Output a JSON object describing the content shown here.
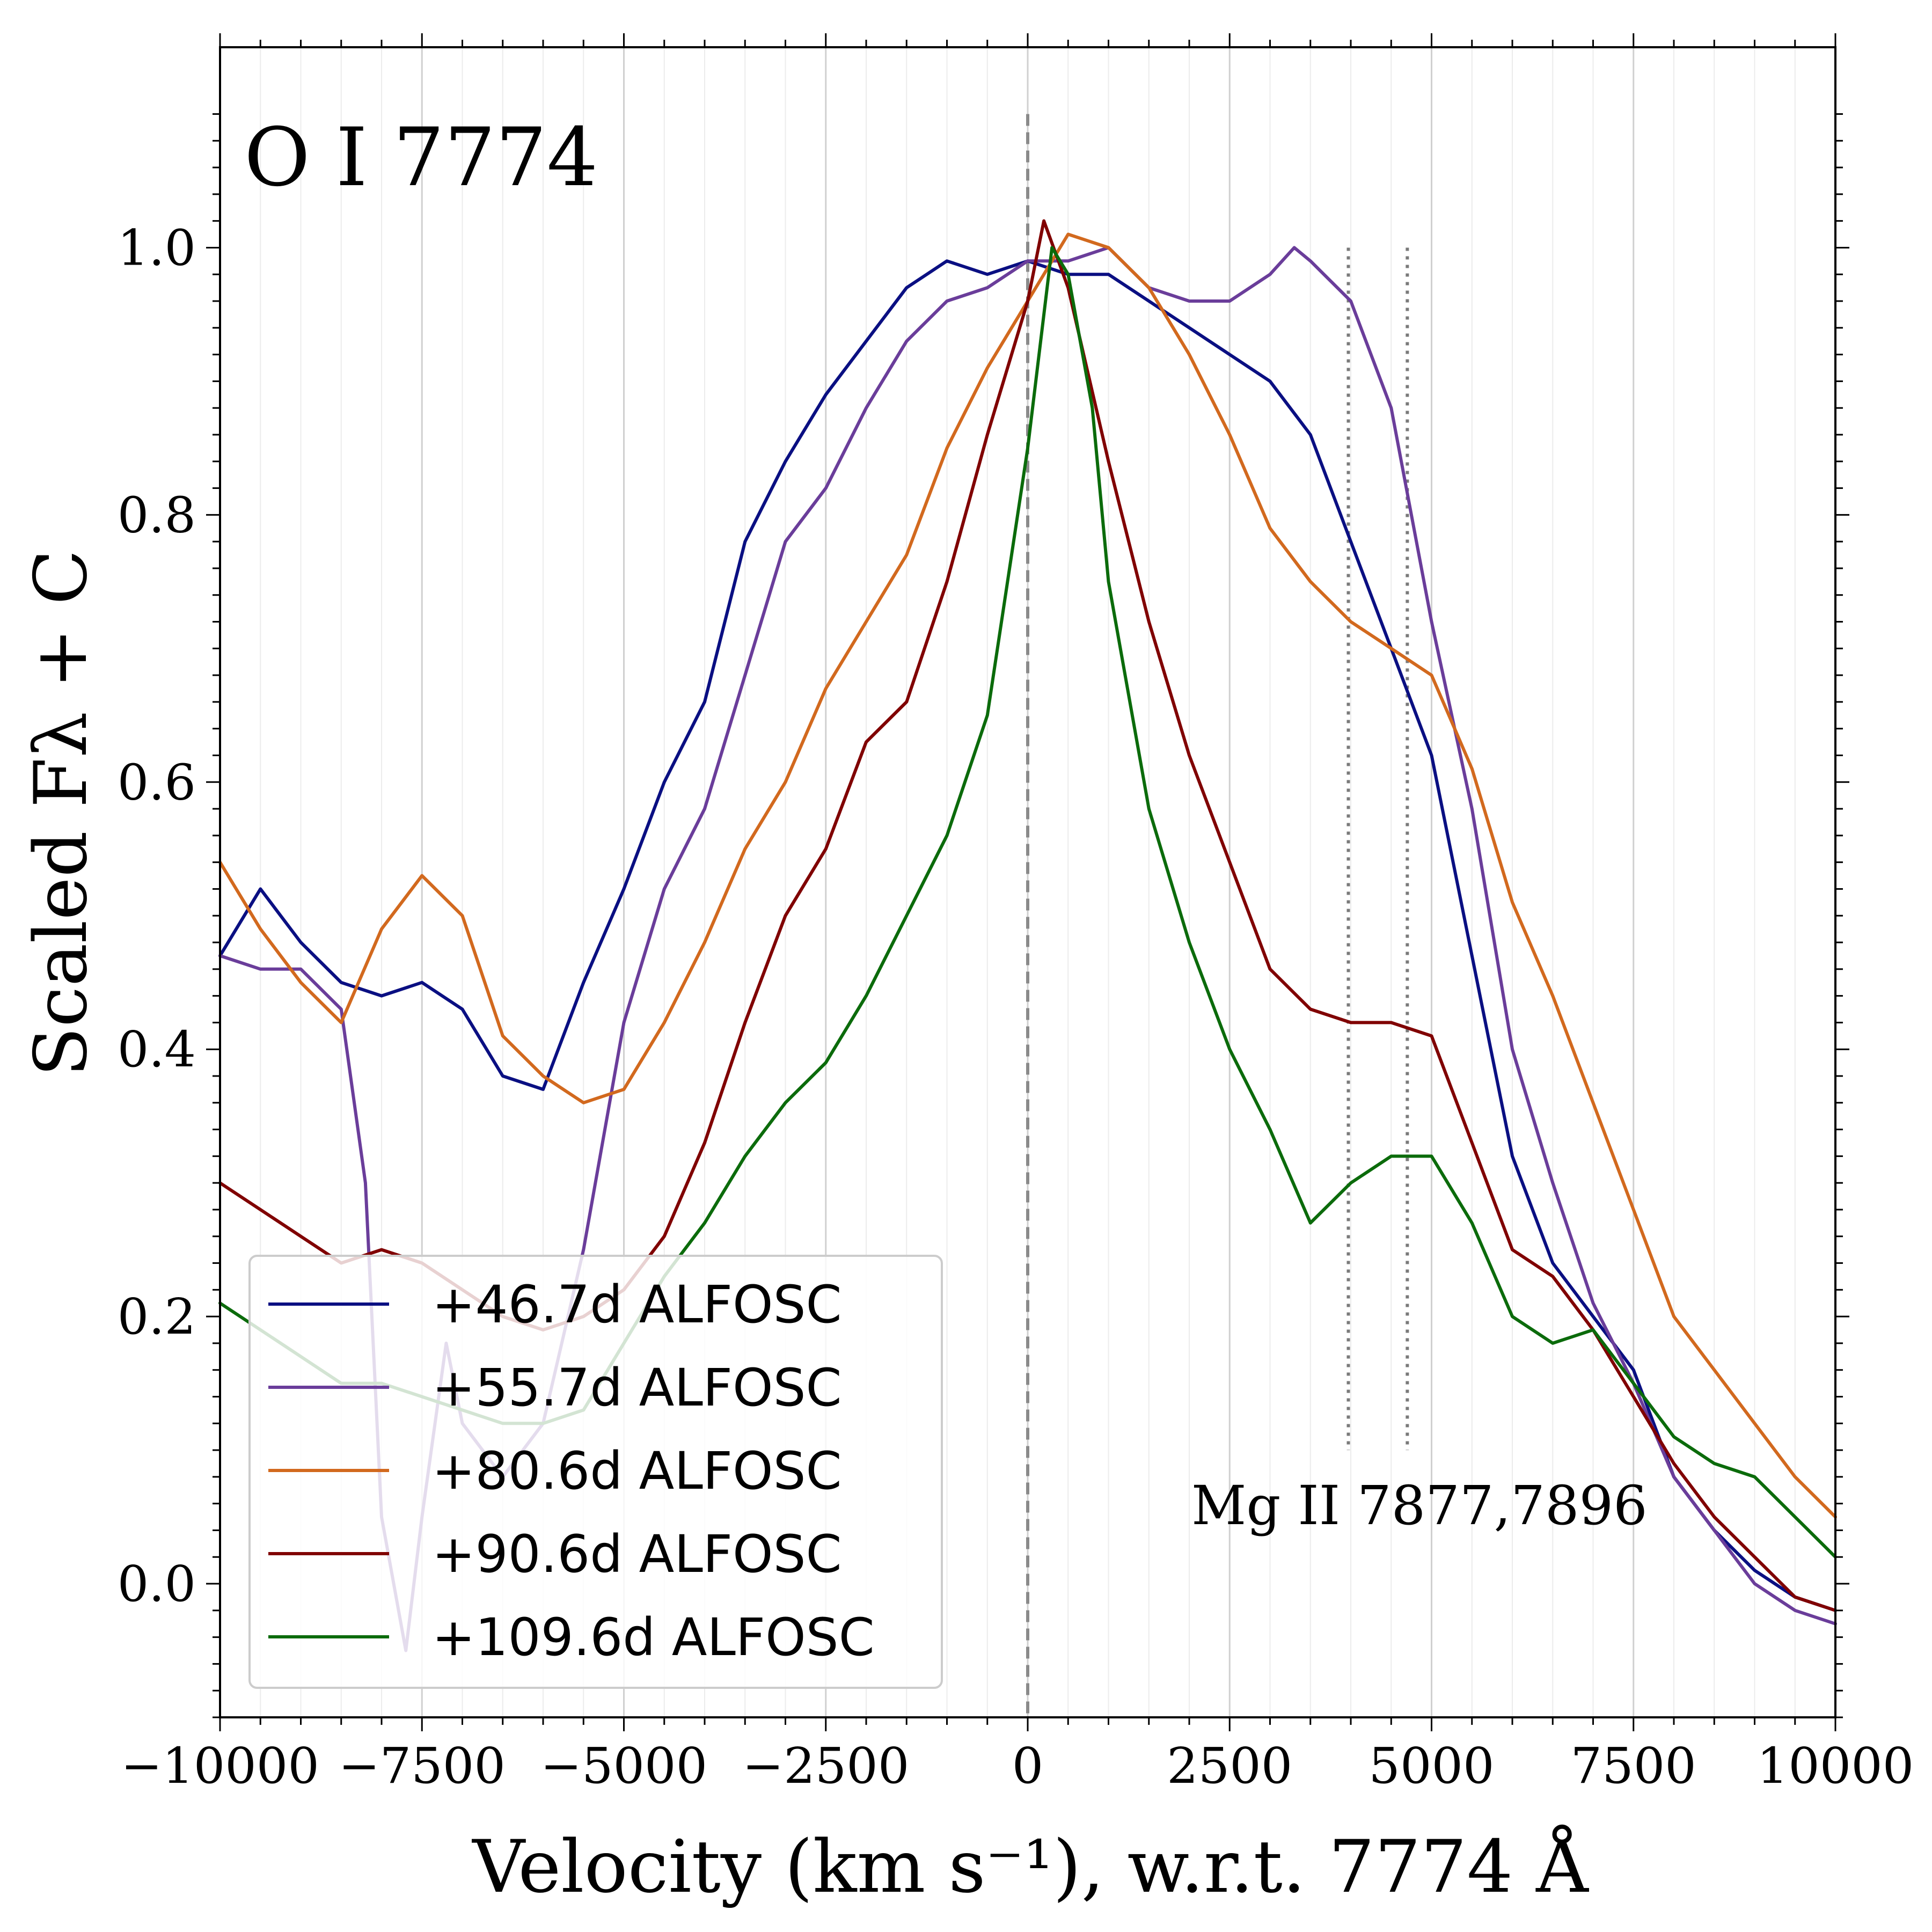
{
  "chart_data": {
    "type": "line",
    "title": "O I 7774",
    "xlabel": "Velocity (km s⁻¹), w.r.t. 7774 Å",
    "ylabel": "Scaled Fλ + C",
    "xlim": [
      -10000,
      10000
    ],
    "ylim": [
      -0.1,
      1.15
    ],
    "xticks": [
      -10000,
      -7500,
      -5000,
      -2500,
      0,
      2500,
      5000,
      7500,
      10000
    ],
    "xtick_labels": [
      "−10000",
      "−7500",
      "−5000",
      "−2500",
      "0",
      "2500",
      "5000",
      "7500",
      "10000"
    ],
    "yticks": [
      0.0,
      0.2,
      0.4,
      0.6,
      0.8,
      1.0
    ],
    "ytick_labels": [
      "0.0",
      "0.2",
      "0.4",
      "0.6",
      "0.8",
      "1.0"
    ],
    "grid": "vertical major and minor",
    "annotation": {
      "text": "Mg II 7877,7896",
      "x": 4500,
      "y": 0.06,
      "markers": [
        {
          "x": 3970,
          "y_range": [
            0.1,
            1.0
          ],
          "style": "dotted"
        },
        {
          "x": 4700,
          "y_range": [
            0.1,
            1.0
          ],
          "style": "dotted"
        }
      ]
    },
    "reference_line": {
      "x": 0,
      "y_range": [
        -0.1,
        1.1
      ],
      "style": "dashed"
    },
    "legend": {
      "position": "lower-left"
    },
    "series": [
      {
        "name": "+46.7d ALFOSC",
        "color": "#0a0f82",
        "x": [
          -10000,
          -9500,
          -9000,
          -8500,
          -8000,
          -7500,
          -7000,
          -6500,
          -6000,
          -5500,
          -5000,
          -4500,
          -4000,
          -3500,
          -3000,
          -2500,
          -2000,
          -1500,
          -1000,
          -500,
          0,
          500,
          1000,
          1500,
          2000,
          2500,
          3000,
          3500,
          4000,
          4500,
          5000,
          5500,
          6000,
          6500,
          7000,
          7500,
          8000,
          8500,
          9000,
          9500,
          10000
        ],
        "y": [
          0.47,
          0.52,
          0.48,
          0.45,
          0.44,
          0.45,
          0.43,
          0.38,
          0.37,
          0.45,
          0.52,
          0.6,
          0.66,
          0.78,
          0.84,
          0.89,
          0.93,
          0.97,
          0.99,
          0.98,
          0.99,
          0.98,
          0.98,
          0.96,
          0.94,
          0.92,
          0.9,
          0.86,
          0.78,
          0.7,
          0.62,
          0.47,
          0.32,
          0.24,
          0.2,
          0.16,
          0.08,
          0.04,
          0.01,
          -0.01,
          -0.02
        ]
      },
      {
        "name": "+55.7d ALFOSC",
        "color": "#6a3d9a",
        "x": [
          -10000,
          -9500,
          -9000,
          -8500,
          -8200,
          -8000,
          -7700,
          -7500,
          -7200,
          -7000,
          -6500,
          -6000,
          -5500,
          -5000,
          -4500,
          -4000,
          -3500,
          -3000,
          -2500,
          -2000,
          -1500,
          -1000,
          -500,
          0,
          500,
          1000,
          1500,
          2000,
          2500,
          3000,
          3300,
          3500,
          4000,
          4500,
          5000,
          5500,
          6000,
          6500,
          7000,
          7500,
          8000,
          8500,
          9000,
          9500,
          10000
        ],
        "y": [
          0.47,
          0.46,
          0.46,
          0.43,
          0.3,
          0.05,
          -0.05,
          0.05,
          0.18,
          0.12,
          0.08,
          0.12,
          0.25,
          0.42,
          0.52,
          0.58,
          0.68,
          0.78,
          0.82,
          0.88,
          0.93,
          0.96,
          0.97,
          0.99,
          0.99,
          1.0,
          0.97,
          0.96,
          0.96,
          0.98,
          1.0,
          0.99,
          0.96,
          0.88,
          0.72,
          0.58,
          0.4,
          0.3,
          0.21,
          0.15,
          0.08,
          0.04,
          0.0,
          -0.02,
          -0.03
        ]
      },
      {
        "name": "+80.6d ALFOSC",
        "color": "#d2691e",
        "x": [
          -10000,
          -9500,
          -9000,
          -8500,
          -8000,
          -7500,
          -7000,
          -6500,
          -6000,
          -5500,
          -5000,
          -4500,
          -4000,
          -3500,
          -3000,
          -2500,
          -2000,
          -1500,
          -1000,
          -500,
          0,
          500,
          1000,
          1500,
          2000,
          2500,
          3000,
          3500,
          4000,
          4500,
          5000,
          5500,
          6000,
          6500,
          7000,
          7500,
          8000,
          8500,
          9000,
          9500,
          10000
        ],
        "y": [
          0.54,
          0.49,
          0.45,
          0.42,
          0.49,
          0.53,
          0.5,
          0.41,
          0.38,
          0.36,
          0.37,
          0.42,
          0.48,
          0.55,
          0.6,
          0.67,
          0.72,
          0.77,
          0.85,
          0.91,
          0.96,
          1.01,
          1.0,
          0.97,
          0.92,
          0.86,
          0.79,
          0.75,
          0.72,
          0.7,
          0.68,
          0.61,
          0.51,
          0.44,
          0.36,
          0.28,
          0.2,
          0.16,
          0.12,
          0.08,
          0.05
        ]
      },
      {
        "name": "+90.6d ALFOSC",
        "color": "#800000",
        "x": [
          -10000,
          -9500,
          -9000,
          -8500,
          -8000,
          -7500,
          -7000,
          -6500,
          -6000,
          -5500,
          -5000,
          -4500,
          -4000,
          -3500,
          -3000,
          -2500,
          -2000,
          -1500,
          -1000,
          -500,
          0,
          200,
          500,
          1000,
          1500,
          2000,
          2500,
          3000,
          3500,
          4000,
          4500,
          5000,
          5500,
          6000,
          6500,
          7000,
          7500,
          8000,
          8500,
          9000,
          9500,
          10000
        ],
        "y": [
          0.3,
          0.28,
          0.26,
          0.24,
          0.25,
          0.24,
          0.22,
          0.2,
          0.19,
          0.2,
          0.22,
          0.26,
          0.33,
          0.42,
          0.5,
          0.55,
          0.63,
          0.66,
          0.75,
          0.86,
          0.96,
          1.02,
          0.97,
          0.84,
          0.72,
          0.62,
          0.54,
          0.46,
          0.43,
          0.42,
          0.42,
          0.41,
          0.33,
          0.25,
          0.23,
          0.19,
          0.14,
          0.09,
          0.05,
          0.02,
          -0.01,
          -0.02
        ]
      },
      {
        "name": "+109.6d ALFOSC",
        "color": "#0b6b0b",
        "x": [
          -10000,
          -9500,
          -9000,
          -8500,
          -8000,
          -7500,
          -7000,
          -6500,
          -6000,
          -5500,
          -5000,
          -4500,
          -4000,
          -3500,
          -3000,
          -2500,
          -2000,
          -1500,
          -1000,
          -500,
          0,
          300,
          500,
          800,
          1000,
          1500,
          2000,
          2500,
          3000,
          3500,
          4000,
          4500,
          5000,
          5500,
          6000,
          6500,
          7000,
          7500,
          8000,
          8500,
          9000,
          9500,
          10000
        ],
        "y": [
          0.21,
          0.19,
          0.17,
          0.15,
          0.15,
          0.14,
          0.13,
          0.12,
          0.12,
          0.13,
          0.18,
          0.23,
          0.27,
          0.32,
          0.36,
          0.39,
          0.44,
          0.5,
          0.56,
          0.65,
          0.85,
          1.0,
          0.98,
          0.88,
          0.75,
          0.58,
          0.48,
          0.4,
          0.34,
          0.27,
          0.3,
          0.32,
          0.32,
          0.27,
          0.2,
          0.18,
          0.19,
          0.15,
          0.11,
          0.09,
          0.08,
          0.05,
          0.02
        ]
      }
    ]
  }
}
